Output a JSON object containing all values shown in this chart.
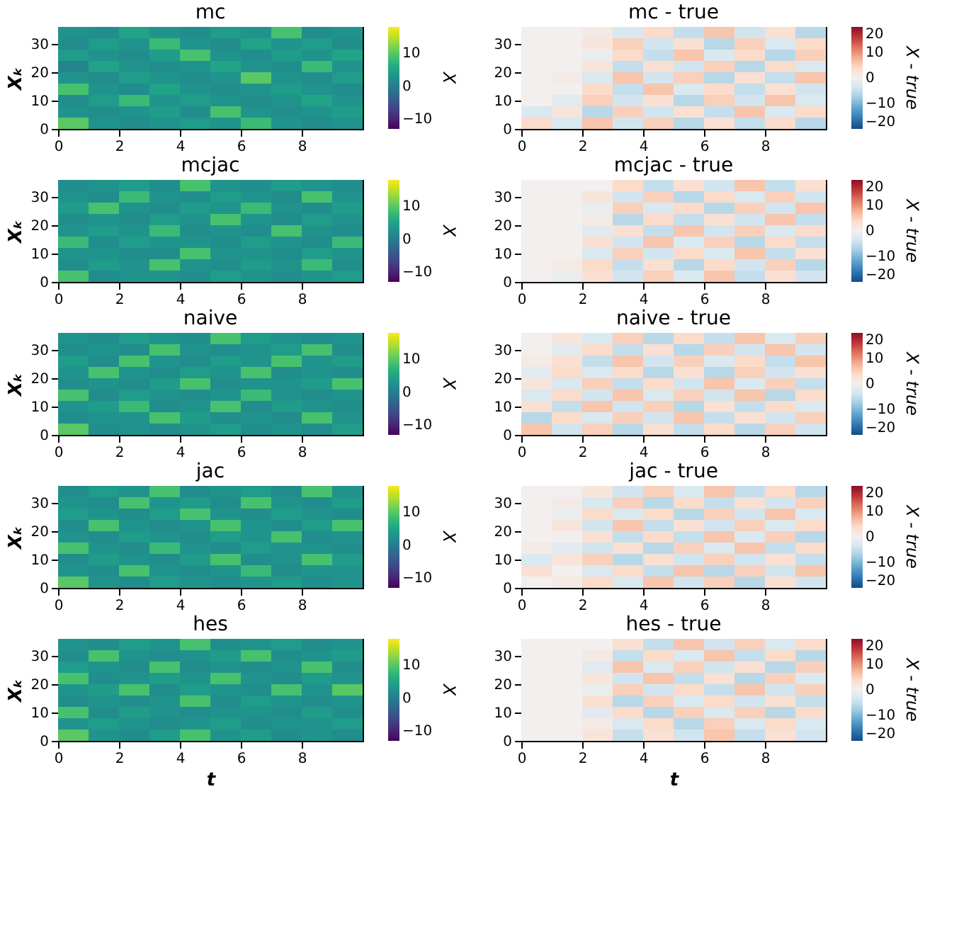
{
  "chart_data": [
    {
      "type": "heatmap",
      "title": "mc",
      "ylabel": "Xₖ",
      "clabel": "X",
      "xlim": [
        0,
        10
      ],
      "ylim": [
        0,
        36
      ],
      "xticks": [
        0,
        2,
        4,
        6,
        8
      ],
      "yticks": [
        0,
        10,
        20,
        30
      ],
      "clim": [
        -13,
        18
      ],
      "cticks": [
        -10,
        0,
        10
      ],
      "cells": [
        [
          3,
          2,
          5,
          3,
          2,
          4,
          3,
          9,
          2,
          3
        ],
        [
          2,
          4,
          3,
          8,
          3,
          2,
          5,
          3,
          4,
          2
        ],
        [
          4,
          3,
          2,
          4,
          9,
          3,
          2,
          4,
          3,
          5
        ],
        [
          1,
          5,
          3,
          2,
          3,
          5,
          3,
          2,
          8,
          3
        ],
        [
          3,
          2,
          4,
          3,
          2,
          3,
          10,
          3,
          2,
          4
        ],
        [
          9,
          3,
          2,
          5,
          3,
          2,
          3,
          4,
          3,
          2
        ],
        [
          2,
          4,
          8,
          3,
          4,
          3,
          2,
          3,
          5,
          3
        ],
        [
          3,
          2,
          3,
          4,
          2,
          9,
          3,
          2,
          3,
          4
        ],
        [
          10,
          3,
          2,
          3,
          4,
          3,
          8,
          3,
          2,
          3
        ]
      ]
    },
    {
      "type": "heatmap",
      "title": "mc - true",
      "clabel": "X - true",
      "xlim": [
        0,
        10
      ],
      "ylim": [
        0,
        36
      ],
      "xticks": [
        0,
        2,
        4,
        6,
        8
      ],
      "yticks": [
        0,
        10,
        20,
        30
      ],
      "clim": [
        -20,
        20
      ],
      "cticks": [
        -20,
        -10,
        0,
        10,
        20
      ],
      "cells": [
        [
          0,
          0,
          1,
          -3,
          4,
          -5,
          6,
          -4,
          3,
          -6
        ],
        [
          0,
          0,
          2,
          5,
          -4,
          3,
          -6,
          5,
          -3,
          4
        ],
        [
          0,
          0,
          -1,
          4,
          -5,
          6,
          -3,
          4,
          -6,
          5
        ],
        [
          0,
          0,
          2,
          -5,
          3,
          -4,
          5,
          -6,
          4,
          -3
        ],
        [
          0,
          1,
          -3,
          6,
          -4,
          5,
          -6,
          3,
          -5,
          6
        ],
        [
          0,
          0,
          4,
          -5,
          6,
          -3,
          4,
          -5,
          3,
          -4
        ],
        [
          0,
          -2,
          5,
          -4,
          3,
          -6,
          5,
          -4,
          6,
          -3
        ],
        [
          -3,
          2,
          -6,
          5,
          -4,
          3,
          -5,
          6,
          -3,
          4
        ],
        [
          4,
          -3,
          6,
          -4,
          5,
          -6,
          3,
          -5,
          4,
          -6
        ]
      ]
    },
    {
      "type": "heatmap",
      "title": "mcjac",
      "ylabel": "Xₖ",
      "clabel": "X",
      "xlim": [
        0,
        10
      ],
      "ylim": [
        0,
        36
      ],
      "xticks": [
        0,
        2,
        4,
        6,
        8
      ],
      "yticks": [
        0,
        10,
        20,
        30
      ],
      "clim": [
        -13,
        18
      ],
      "cticks": [
        -10,
        0,
        10
      ],
      "cells": [
        [
          2,
          3,
          4,
          2,
          9,
          3,
          2,
          4,
          3,
          2
        ],
        [
          3,
          2,
          8,
          3,
          2,
          4,
          3,
          2,
          9,
          3
        ],
        [
          4,
          9,
          3,
          2,
          4,
          3,
          8,
          3,
          2,
          4
        ],
        [
          2,
          3,
          2,
          4,
          3,
          9,
          3,
          2,
          4,
          3
        ],
        [
          3,
          4,
          3,
          8,
          2,
          3,
          2,
          9,
          3,
          2
        ],
        [
          8,
          2,
          4,
          3,
          3,
          2,
          4,
          3,
          2,
          8
        ],
        [
          3,
          3,
          2,
          2,
          9,
          3,
          3,
          2,
          4,
          3
        ],
        [
          2,
          4,
          3,
          9,
          3,
          2,
          4,
          3,
          8,
          2
        ],
        [
          9,
          2,
          3,
          3,
          2,
          4,
          3,
          2,
          3,
          4
        ]
      ]
    },
    {
      "type": "heatmap",
      "title": "mcjac - true",
      "clabel": "X - true",
      "xlim": [
        0,
        10
      ],
      "ylim": [
        0,
        36
      ],
      "xticks": [
        0,
        2,
        4,
        6,
        8
      ],
      "yticks": [
        0,
        10,
        20,
        30
      ],
      "clim": [
        -20,
        20
      ],
      "cticks": [
        -20,
        -10,
        0,
        10,
        20
      ],
      "cells": [
        [
          0,
          0,
          0,
          4,
          -5,
          3,
          -4,
          6,
          -5,
          3
        ],
        [
          0,
          0,
          2,
          -4,
          5,
          -6,
          4,
          -3,
          5,
          -4
        ],
        [
          0,
          0,
          -1,
          5,
          -3,
          4,
          -6,
          5,
          -4,
          6
        ],
        [
          0,
          0,
          1,
          -6,
          4,
          -5,
          3,
          -4,
          6,
          -5
        ],
        [
          0,
          0,
          -2,
          3,
          -5,
          6,
          -4,
          5,
          -3,
          4
        ],
        [
          0,
          0,
          3,
          -4,
          6,
          -3,
          5,
          -6,
          4,
          -5
        ],
        [
          0,
          0,
          -3,
          5,
          -4,
          4,
          -3,
          6,
          -5,
          3
        ],
        [
          0,
          1,
          4,
          -5,
          3,
          -6,
          4,
          -4,
          5,
          -6
        ],
        [
          0,
          -1,
          3,
          -4,
          5,
          -3,
          6,
          -5,
          3,
          -4
        ]
      ]
    },
    {
      "type": "heatmap",
      "title": "naive",
      "ylabel": "Xₖ",
      "clabel": "X",
      "xlim": [
        0,
        10
      ],
      "ylim": [
        0,
        36
      ],
      "xticks": [
        0,
        2,
        4,
        6,
        8
      ],
      "yticks": [
        0,
        10,
        20,
        30
      ],
      "clim": [
        -13,
        18
      ],
      "cticks": [
        -10,
        0,
        10
      ],
      "cells": [
        [
          3,
          2,
          4,
          3,
          2,
          9,
          4,
          3,
          2,
          3
        ],
        [
          2,
          3,
          2,
          9,
          3,
          2,
          3,
          4,
          9,
          2
        ],
        [
          4,
          2,
          9,
          3,
          2,
          4,
          3,
          9,
          3,
          4
        ],
        [
          3,
          9,
          3,
          2,
          4,
          3,
          9,
          2,
          3,
          2
        ],
        [
          2,
          3,
          2,
          4,
          9,
          2,
          3,
          3,
          4,
          9
        ],
        [
          9,
          2,
          4,
          3,
          2,
          3,
          8,
          3,
          2,
          3
        ],
        [
          3,
          4,
          8,
          2,
          3,
          9,
          2,
          4,
          3,
          2
        ],
        [
          2,
          3,
          3,
          9,
          4,
          2,
          3,
          2,
          9,
          3
        ],
        [
          10,
          2,
          3,
          2,
          3,
          4,
          2,
          3,
          2,
          4
        ]
      ]
    },
    {
      "type": "heatmap",
      "title": "naive - true",
      "clabel": "X - true",
      "xlim": [
        0,
        10
      ],
      "ylim": [
        0,
        36
      ],
      "xticks": [
        0,
        2,
        4,
        6,
        8
      ],
      "yticks": [
        0,
        10,
        20,
        30
      ],
      "clim": [
        -20,
        20
      ],
      "cticks": [
        -20,
        -10,
        0,
        10,
        20
      ],
      "cells": [
        [
          0,
          2,
          -3,
          5,
          -6,
          4,
          -5,
          6,
          -3,
          5
        ],
        [
          0,
          -2,
          4,
          -5,
          3,
          -6,
          5,
          -4,
          6,
          -4
        ],
        [
          1,
          3,
          -5,
          6,
          -4,
          5,
          -3,
          4,
          -5,
          6
        ],
        [
          -2,
          4,
          -3,
          4,
          -6,
          3,
          -6,
          5,
          -4,
          3
        ],
        [
          2,
          -3,
          5,
          -5,
          4,
          -4,
          6,
          -3,
          5,
          -5
        ],
        [
          -3,
          4,
          -4,
          6,
          -3,
          5,
          -4,
          6,
          -6,
          4
        ],
        [
          3,
          -5,
          6,
          -4,
          5,
          -6,
          3,
          -5,
          4,
          -3
        ],
        [
          -6,
          4,
          -3,
          5,
          -4,
          6,
          -5,
          3,
          -4,
          5
        ],
        [
          6,
          -4,
          5,
          -6,
          3,
          -5,
          4,
          -6,
          5,
          -4
        ]
      ]
    },
    {
      "type": "heatmap",
      "title": "jac",
      "ylabel": "Xₖ",
      "clabel": "X",
      "xlim": [
        0,
        10
      ],
      "ylim": [
        0,
        36
      ],
      "xticks": [
        0,
        2,
        4,
        6,
        8
      ],
      "yticks": [
        0,
        10,
        20,
        30
      ],
      "clim": [
        -13,
        18
      ],
      "cticks": [
        -10,
        0,
        10
      ],
      "cells": [
        [
          2,
          4,
          3,
          9,
          2,
          3,
          4,
          2,
          9,
          3
        ],
        [
          3,
          2,
          9,
          3,
          4,
          2,
          9,
          3,
          2,
          4
        ],
        [
          4,
          3,
          2,
          4,
          9,
          3,
          2,
          4,
          3,
          2
        ],
        [
          2,
          9,
          3,
          2,
          3,
          9,
          3,
          2,
          4,
          9
        ],
        [
          3,
          2,
          4,
          3,
          2,
          4,
          3,
          9,
          2,
          3
        ],
        [
          9,
          3,
          2,
          8,
          3,
          2,
          4,
          3,
          3,
          2
        ],
        [
          2,
          4,
          3,
          2,
          4,
          9,
          2,
          3,
          9,
          4
        ],
        [
          3,
          2,
          9,
          3,
          2,
          3,
          8,
          2,
          3,
          3
        ],
        [
          10,
          3,
          2,
          4,
          3,
          2,
          3,
          4,
          2,
          3
        ]
      ]
    },
    {
      "type": "heatmap",
      "title": "jac - true",
      "clabel": "X - true",
      "xlim": [
        0,
        10
      ],
      "ylim": [
        0,
        36
      ],
      "xticks": [
        0,
        2,
        4,
        6,
        8
      ],
      "yticks": [
        0,
        10,
        20,
        30
      ],
      "clim": [
        -20,
        20
      ],
      "cticks": [
        -20,
        -10,
        0,
        10,
        20
      ],
      "cells": [
        [
          0,
          0,
          2,
          -4,
          5,
          -3,
          6,
          -5,
          4,
          -6
        ],
        [
          0,
          1,
          -3,
          5,
          -6,
          4,
          -5,
          3,
          -4,
          5
        ],
        [
          0,
          -1,
          4,
          -3,
          4,
          -6,
          5,
          -4,
          6,
          -3
        ],
        [
          0,
          2,
          -4,
          6,
          -5,
          3,
          -4,
          5,
          -3,
          4
        ],
        [
          0,
          0,
          3,
          -5,
          4,
          -5,
          6,
          -3,
          5,
          -6
        ],
        [
          1,
          -2,
          -4,
          3,
          -6,
          5,
          -3,
          6,
          -5,
          4
        ],
        [
          -3,
          2,
          5,
          -6,
          3,
          -4,
          5,
          -4,
          3,
          -5
        ],
        [
          3,
          0,
          -3,
          4,
          -5,
          6,
          -6,
          5,
          -4,
          6
        ],
        [
          0,
          1,
          4,
          -3,
          6,
          -4,
          5,
          -6,
          3,
          -4
        ]
      ]
    },
    {
      "type": "heatmap",
      "title": "hes",
      "ylabel": "Xₖ",
      "xlabel": "t",
      "clabel": "X",
      "xlim": [
        0,
        10
      ],
      "ylim": [
        0,
        36
      ],
      "xticks": [
        0,
        2,
        4,
        6,
        8
      ],
      "yticks": [
        0,
        10,
        20,
        30
      ],
      "clim": [
        -13,
        18
      ],
      "cticks": [
        -10,
        0,
        10
      ],
      "cells": [
        [
          3,
          2,
          4,
          3,
          9,
          2,
          3,
          4,
          2,
          3
        ],
        [
          2,
          9,
          3,
          2,
          3,
          4,
          9,
          2,
          3,
          4
        ],
        [
          4,
          3,
          2,
          9,
          2,
          3,
          2,
          3,
          9,
          2
        ],
        [
          9,
          2,
          3,
          4,
          3,
          9,
          3,
          2,
          4,
          3
        ],
        [
          3,
          4,
          9,
          2,
          4,
          3,
          2,
          9,
          3,
          10
        ],
        [
          2,
          3,
          2,
          3,
          9,
          2,
          4,
          3,
          2,
          3
        ],
        [
          9,
          2,
          4,
          3,
          2,
          3,
          3,
          2,
          4,
          2
        ],
        [
          3,
          4,
          3,
          2,
          3,
          4,
          2,
          3,
          3,
          4
        ],
        [
          10,
          3,
          2,
          4,
          9,
          3,
          4,
          2,
          3,
          2
        ]
      ]
    },
    {
      "type": "heatmap",
      "title": "hes - true",
      "xlabel": "t",
      "clabel": "X - true",
      "xlim": [
        0,
        10
      ],
      "ylim": [
        0,
        36
      ],
      "xticks": [
        0,
        2,
        4,
        6,
        8
      ],
      "yticks": [
        0,
        10,
        20,
        30
      ],
      "clim": [
        -20,
        20
      ],
      "cticks": [
        -20,
        -10,
        0,
        10,
        20
      ],
      "cells": [
        [
          0,
          0,
          0,
          3,
          -5,
          6,
          -4,
          5,
          -3,
          4
        ],
        [
          0,
          0,
          1,
          -5,
          4,
          -3,
          6,
          -5,
          4,
          -6
        ],
        [
          0,
          0,
          -2,
          6,
          -3,
          5,
          -4,
          3,
          -6,
          5
        ],
        [
          0,
          0,
          2,
          -4,
          6,
          -5,
          3,
          -6,
          5,
          -3
        ],
        [
          0,
          0,
          -1,
          5,
          -4,
          4,
          -5,
          6,
          -4,
          5
        ],
        [
          0,
          0,
          3,
          -6,
          5,
          -3,
          4,
          -4,
          3,
          -5
        ],
        [
          0,
          0,
          -2,
          4,
          -6,
          5,
          -3,
          5,
          -6,
          4
        ],
        [
          0,
          0,
          1,
          -3,
          4,
          -6,
          5,
          -3,
          4,
          -3
        ],
        [
          0,
          0,
          2,
          -5,
          3,
          -4,
          6,
          -5,
          3,
          -4
        ]
      ]
    }
  ]
}
